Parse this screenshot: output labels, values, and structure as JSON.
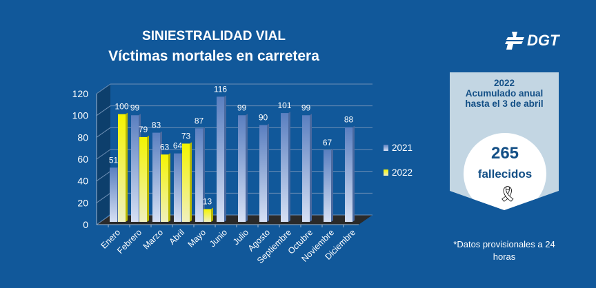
{
  "chart_data": {
    "type": "bar",
    "title": "SINIESTRALIDAD VIAL",
    "subtitle": "Víctimas mortales en carretera",
    "categories": [
      "Enero",
      "Febrero",
      "Marzo",
      "Abril",
      "Mayo",
      "Junio",
      "Julio",
      "Agosto",
      "Septiembre",
      "Octubre",
      "Noviembre",
      "Diciembre"
    ],
    "series": [
      {
        "name": "2021",
        "color": "#8fa9d8",
        "values": [
          51,
          99,
          83,
          64,
          87,
          116,
          99,
          90,
          101,
          99,
          67,
          88
        ]
      },
      {
        "name": "2022",
        "color": "#f2f200",
        "values": [
          100,
          79,
          63,
          73,
          13,
          null,
          null,
          null,
          null,
          null,
          null,
          null
        ]
      }
    ],
    "ylim": [
      0,
      120
    ],
    "yticks": [
      0,
      20,
      40,
      60,
      80,
      100,
      120
    ],
    "grid": true,
    "legend": "right",
    "xlabel": "",
    "ylabel": ""
  },
  "logo": {
    "text": "DGT"
  },
  "panel": {
    "year": "2022",
    "line1": "Acumulado anual",
    "line2": "hasta el 3 de abril",
    "count": "265",
    "label": "fallecidos",
    "icon": "mourning-ribbon-icon"
  },
  "note": "*Datos provisionales a 24 horas"
}
